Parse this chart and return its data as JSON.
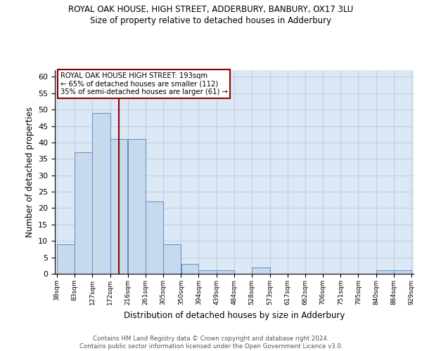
{
  "title": "ROYAL OAK HOUSE, HIGH STREET, ADDERBURY, BANBURY, OX17 3LU",
  "subtitle": "Size of property relative to detached houses in Adderbury",
  "xlabel": "Distribution of detached houses by size in Adderbury",
  "ylabel": "Number of detached properties",
  "bar_edges": [
    38,
    83,
    127,
    172,
    216,
    261,
    305,
    350,
    394,
    439,
    484,
    528,
    573,
    617,
    662,
    706,
    751,
    795,
    840,
    884,
    929
  ],
  "bar_heights": [
    9,
    37,
    49,
    41,
    41,
    22,
    9,
    3,
    1,
    1,
    0,
    2,
    0,
    0,
    0,
    0,
    0,
    0,
    1,
    1
  ],
  "bar_color": "#c9d9ed",
  "bar_edge_color": "#5b8ec4",
  "property_line_x": 193,
  "property_line_color": "#8b0000",
  "annotation_text": "ROYAL OAK HOUSE HIGH STREET: 193sqm\n← 65% of detached houses are smaller (112)\n35% of semi-detached houses are larger (61) →",
  "annotation_box_color": "white",
  "annotation_box_edge_color": "#8b0000",
  "ylim": [
    0,
    62
  ],
  "yticks": [
    0,
    5,
    10,
    15,
    20,
    25,
    30,
    35,
    40,
    45,
    50,
    55,
    60
  ],
  "tick_labels": [
    "38sqm",
    "83sqm",
    "127sqm",
    "172sqm",
    "216sqm",
    "261sqm",
    "305sqm",
    "350sqm",
    "394sqm",
    "439sqm",
    "484sqm",
    "528sqm",
    "573sqm",
    "617sqm",
    "662sqm",
    "706sqm",
    "751sqm",
    "795sqm",
    "840sqm",
    "884sqm",
    "929sqm"
  ],
  "grid_color": "#c0cfe0",
  "bg_color": "#dce8f5",
  "footer_text": "Contains HM Land Registry data © Crown copyright and database right 2024.\nContains public sector information licensed under the Open Government Licence v3.0.",
  "footer_color": "#555555"
}
